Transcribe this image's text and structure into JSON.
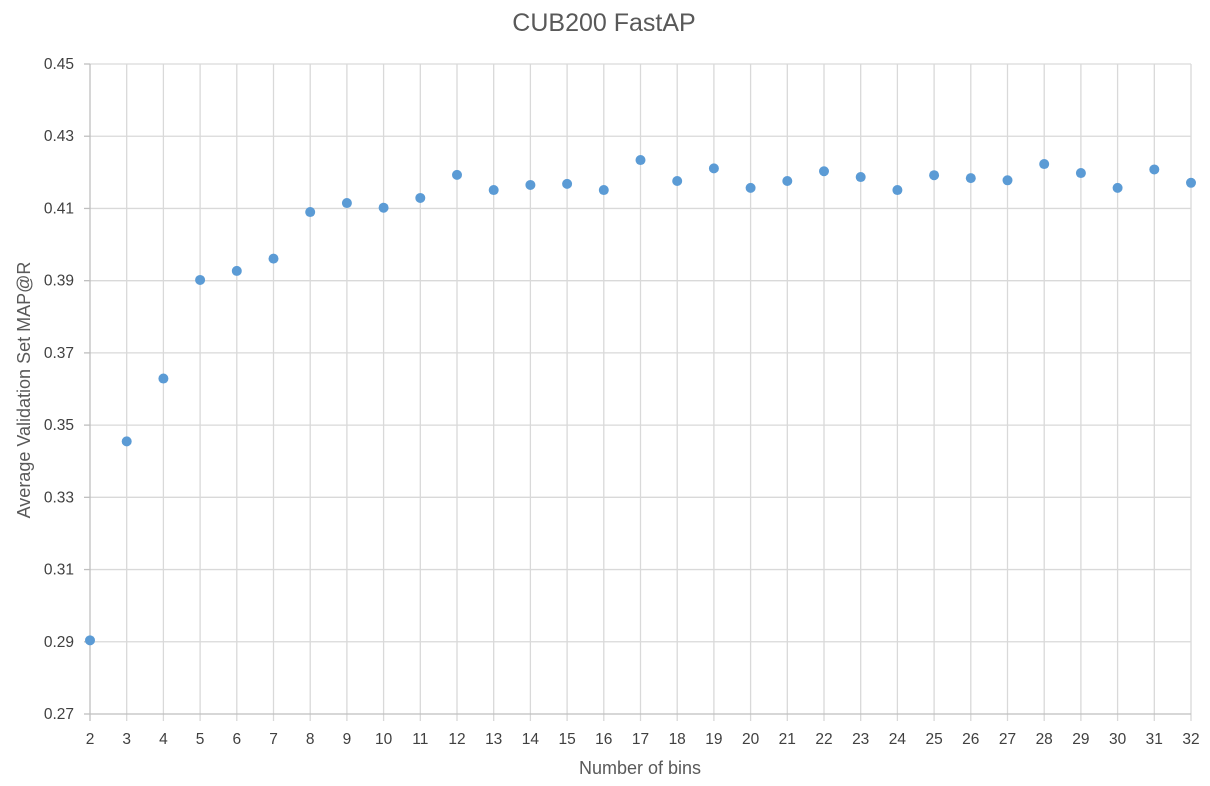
{
  "chart_data": {
    "type": "scatter",
    "title": "CUB200 FastAP",
    "xlabel": "Number of bins",
    "ylabel": "Average Validation Set MAP@R",
    "xlim": [
      2,
      32
    ],
    "ylim": [
      0.27,
      0.45
    ],
    "x_ticks": [
      "2",
      "3",
      "4",
      "5",
      "6",
      "7",
      "8",
      "9",
      "10",
      "11",
      "12",
      "13",
      "14",
      "15",
      "16",
      "17",
      "18",
      "19",
      "20",
      "21",
      "22",
      "23",
      "24",
      "25",
      "26",
      "27",
      "28",
      "29",
      "30",
      "31",
      "32"
    ],
    "y_ticks": [
      "0.27",
      "0.29",
      "0.31",
      "0.33",
      "0.35",
      "0.37",
      "0.39",
      "0.41",
      "0.43",
      "0.45"
    ],
    "grid": true,
    "marker_color": "#5b9bd5",
    "x": [
      2,
      3,
      4,
      5,
      6,
      7,
      8,
      9,
      10,
      11,
      12,
      13,
      14,
      15,
      16,
      17,
      18,
      19,
      20,
      21,
      22,
      23,
      24,
      25,
      26,
      27,
      28,
      29,
      30,
      31,
      32
    ],
    "y": [
      0.2904,
      0.3455,
      0.3629,
      0.3902,
      0.3927,
      0.3961,
      0.409,
      0.4115,
      0.4102,
      0.4129,
      0.4193,
      0.4151,
      0.4165,
      0.4168,
      0.4151,
      0.4234,
      0.4176,
      0.4211,
      0.4157,
      0.4176,
      0.4203,
      0.4187,
      0.4151,
      0.4192,
      0.4184,
      0.4178,
      0.4223,
      0.4198,
      0.4157,
      0.4208,
      0.4171
    ]
  }
}
